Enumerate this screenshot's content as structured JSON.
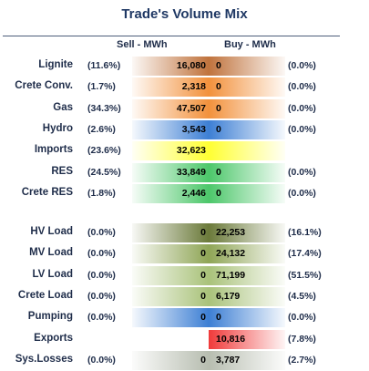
{
  "title": "Trade's Volume Mix",
  "headers": {
    "sell": "Sell - MWh",
    "buy": "Buy - MWh"
  },
  "chart_data": {
    "type": "table",
    "title": "Trade's Volume Mix",
    "columns": [
      "Sell - MWh",
      "Buy - MWh"
    ],
    "groups": [
      {
        "rows": [
          {
            "label": "Lignite",
            "sell_pct": "(11.6%)",
            "sell": 16080,
            "sell_text": "16,080",
            "buy": 0,
            "buy_text": "0",
            "buy_pct": "(0.0%)",
            "color": "#c0733d"
          },
          {
            "label": "Crete Conv.",
            "sell_pct": "(1.7%)",
            "sell": 2318,
            "sell_text": "2,318",
            "buy": 0,
            "buy_text": "0",
            "buy_pct": "(0.0%)",
            "color": "#f2913c"
          },
          {
            "label": "Gas",
            "sell_pct": "(34.3%)",
            "sell": 47507,
            "sell_text": "47,507",
            "buy": 0,
            "buy_text": "0",
            "buy_pct": "(0.0%)",
            "color": "#f2913c"
          },
          {
            "label": "Hydro",
            "sell_pct": "(2.6%)",
            "sell": 3543,
            "sell_text": "3,543",
            "buy": 0,
            "buy_text": "0",
            "buy_pct": "(0.0%)",
            "color": "#3d7fd4"
          },
          {
            "label": "Imports",
            "sell_pct": "(23.6%)",
            "sell": 32623,
            "sell_text": "32,623",
            "buy": null,
            "buy_text": "",
            "buy_pct": "",
            "color": "#ffff33"
          },
          {
            "label": "RES",
            "sell_pct": "(24.5%)",
            "sell": 33849,
            "sell_text": "33,849",
            "buy": 0,
            "buy_text": "0",
            "buy_pct": "(0.0%)",
            "color": "#4cc76a"
          },
          {
            "label": "Crete RES",
            "sell_pct": "(1.8%)",
            "sell": 2446,
            "sell_text": "2,446",
            "buy": 0,
            "buy_text": "0",
            "buy_pct": "(0.0%)",
            "color": "#4cc76a"
          }
        ]
      },
      {
        "rows": [
          {
            "label": "HV Load",
            "sell_pct": "(0.0%)",
            "sell": 0,
            "sell_text": "0",
            "buy": 22253,
            "buy_text": "22,253",
            "buy_pct": "(16.1%)",
            "color": "#6b7a3a"
          },
          {
            "label": "MV Load",
            "sell_pct": "(0.0%)",
            "sell": 0,
            "sell_text": "0",
            "buy": 24132,
            "buy_text": "24,132",
            "buy_pct": "(17.4%)",
            "color": "#8fa556"
          },
          {
            "label": "LV Load",
            "sell_pct": "(0.0%)",
            "sell": 0,
            "sell_text": "0",
            "buy": 71199,
            "buy_text": "71,199",
            "buy_pct": "(51.5%)",
            "color": "#a9c27a"
          },
          {
            "label": "Crete Load",
            "sell_pct": "(0.0%)",
            "sell": 0,
            "sell_text": "0",
            "buy": 6179,
            "buy_text": "6,179",
            "buy_pct": "(4.5%)",
            "color": "#a9c27a"
          },
          {
            "label": "Pumping",
            "sell_pct": "(0.0%)",
            "sell": 0,
            "sell_text": "0",
            "buy": 0,
            "buy_text": "0",
            "buy_pct": "(0.0%)",
            "color": "#3d7fd4"
          },
          {
            "label": "Exports",
            "sell_pct": "",
            "sell": null,
            "sell_text": "",
            "buy": 10816,
            "buy_text": "10,816",
            "buy_pct": "(7.8%)",
            "color": "#f03a3a"
          },
          {
            "label": "Sys.Losses",
            "sell_pct": "(0.0%)",
            "sell": 0,
            "sell_text": "0",
            "buy": 3787,
            "buy_text": "3,787",
            "buy_pct": "(2.7%)",
            "color": "#b7bdb0"
          }
        ]
      }
    ]
  }
}
